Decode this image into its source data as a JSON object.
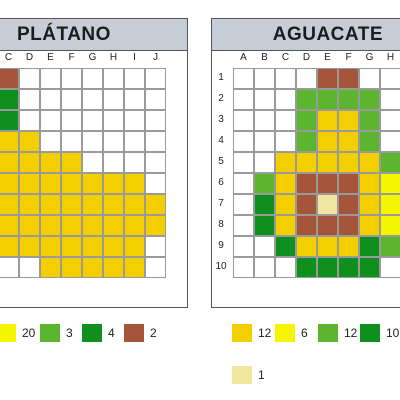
{
  "colors": {
    "Y": "#f3cf00",
    "L": "#f5f500",
    "G": "#5bb52f",
    "D": "#0e8f1e",
    "B": "#a5553a",
    "P": "#f0e6a0",
    "W": "#ffffff"
  },
  "platano": {
    "title": "PLÁTANO",
    "col_labels": [
      "C",
      "D",
      "E",
      "F",
      "G",
      "H",
      "I",
      "J"
    ],
    "rows": [
      "BWWWWWWW",
      "DWWWWWWW",
      "DWWWWWWW",
      "YYWWWWWW",
      "YYYYWWWW",
      "YYYYYYYW",
      "YYYYYYYY",
      "YYYYYYYY",
      "YYYYYYYW",
      "WWYYYYYW"
    ],
    "legend": [
      {
        "color": "L",
        "count": "20"
      },
      {
        "color": "G",
        "count": "3"
      },
      {
        "color": "D",
        "count": "4"
      },
      {
        "color": "B",
        "count": "2"
      }
    ]
  },
  "aguacate": {
    "title": "AGUACATE",
    "col_labels": [
      "A",
      "B",
      "C",
      "D",
      "E",
      "F",
      "G",
      "H"
    ],
    "row_labels": [
      "1",
      "2",
      "3",
      "4",
      "5",
      "6",
      "7",
      "8",
      "9",
      "10"
    ],
    "rows": [
      "WWWWBBWW",
      "WWWGGGGW",
      "WWWGYYGW",
      "WWWGYYGW",
      "WWYYYYYG",
      "WGYBBBYL",
      "WDYBPBYL",
      "WDYBBBYL",
      "WWDYYYDG",
      "WWWDDDDW"
    ],
    "legend": [
      {
        "color": "Y",
        "count": "12"
      },
      {
        "color": "L",
        "count": "6"
      },
      {
        "color": "G",
        "count": "12"
      },
      {
        "color": "D",
        "count": "10"
      },
      {
        "color": "P",
        "count": "1"
      }
    ]
  }
}
